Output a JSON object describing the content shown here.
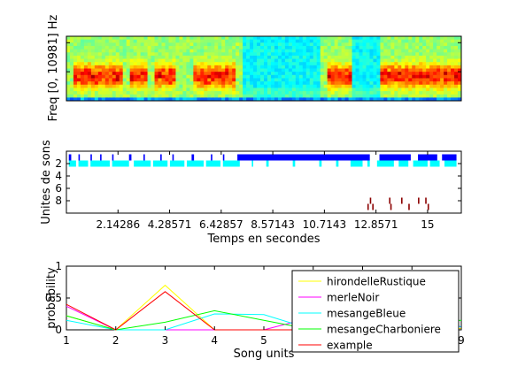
{
  "figure": {
    "panels": [
      {
        "id": "spectrogram",
        "ylabel": "Freq [0, 10981] Hz"
      },
      {
        "id": "units",
        "ylabel": "Unites de sons",
        "xlabel": "Temps en secondes",
        "yticks": [
          "2",
          "4",
          "6",
          "8"
        ],
        "xticks": [
          "2.14286",
          "4.28571",
          "6.42857",
          "8.57143",
          "10.7143",
          "12.8571",
          "15"
        ]
      },
      {
        "id": "probability",
        "ylabel": "probability",
        "xlabel": "Song units",
        "yticks": [
          "0",
          "0.5",
          "1"
        ],
        "xticks": [
          "1",
          "2",
          "3",
          "4",
          "5",
          "6",
          "7",
          "8",
          "9"
        ]
      }
    ]
  },
  "chart_data": [
    {
      "type": "heatmap",
      "title": "",
      "xlabel": "",
      "ylabel": "Freq [0, 10981] Hz",
      "ylim": [
        0,
        10981
      ],
      "xlim": [
        0,
        16.4
      ],
      "colormap": "jet",
      "activity_segments_seconds": [
        [
          0.3,
          2.3
        ],
        [
          2.6,
          3.3
        ],
        [
          3.6,
          4.6
        ],
        [
          5.2,
          7.1
        ],
        [
          10.8,
          11.8
        ],
        [
          13.1,
          16.4
        ]
      ],
      "quiet_segments_seconds": [
        [
          7.3,
          10.6
        ],
        [
          11.9,
          13.0
        ]
      ]
    },
    {
      "type": "scatter",
      "title": "",
      "xlabel": "Temps en secondes",
      "ylabel": "Unites de sons",
      "xlim": [
        0,
        16.4
      ],
      "ylim": [
        10,
        0
      ],
      "x_ticks": [
        2.14286,
        4.28571,
        6.42857,
        8.57143,
        10.7143,
        12.8571,
        15
      ],
      "y_ticks": [
        2,
        4,
        6,
        8
      ],
      "series": [
        {
          "unit": 1,
          "color": "#0000ff",
          "events": [
            [
              0.1,
              0.2
            ],
            [
              0.5,
              0.55
            ],
            [
              1.0,
              1.05
            ],
            [
              1.4,
              1.45
            ],
            [
              1.9,
              1.95
            ],
            [
              2.6,
              2.7
            ],
            [
              3.2,
              3.25
            ],
            [
              3.9,
              3.95
            ],
            [
              4.4,
              4.45
            ],
            [
              5.2,
              5.3
            ],
            [
              6.0,
              6.05
            ],
            [
              6.5,
              6.55
            ],
            [
              7.1,
              12.6
            ],
            [
              13.0,
              14.3
            ],
            [
              14.6,
              15.4
            ],
            [
              15.6,
              16.2
            ]
          ]
        },
        {
          "unit": 2,
          "color": "#00ffff",
          "events": [
            [
              0.1,
              0.4
            ],
            [
              0.5,
              0.9
            ],
            [
              1.0,
              1.8
            ],
            [
              1.9,
              2.6
            ],
            [
              2.8,
              3.5
            ],
            [
              3.6,
              4.2
            ],
            [
              4.3,
              4.9
            ],
            [
              5.0,
              5.7
            ],
            [
              5.8,
              6.4
            ],
            [
              6.5,
              7.2
            ],
            [
              7.7,
              7.75
            ],
            [
              8.3,
              8.4
            ],
            [
              9.4,
              9.5
            ],
            [
              10.5,
              10.6
            ],
            [
              11.2,
              11.3
            ],
            [
              11.8,
              12.3
            ],
            [
              12.5,
              12.6
            ],
            [
              12.9,
              13.6
            ],
            [
              13.8,
              14.2
            ],
            [
              14.4,
              15.0
            ],
            [
              15.1,
              15.5
            ],
            [
              15.7,
              16.2
            ]
          ]
        },
        {
          "unit": 8,
          "color": "#8b0000",
          "events": [
            [
              12.6,
              12.63
            ],
            [
              13.4,
              13.43
            ],
            [
              13.9,
              13.93
            ],
            [
              14.6,
              14.63
            ],
            [
              14.9,
              14.93
            ]
          ]
        },
        {
          "unit": 9,
          "color": "#8b0000",
          "events": [
            [
              12.5,
              12.53
            ],
            [
              12.7,
              12.73
            ],
            [
              13.45,
              13.48
            ],
            [
              14.2,
              14.23
            ],
            [
              15.0,
              15.03
            ]
          ]
        }
      ]
    },
    {
      "type": "line",
      "title": "",
      "xlabel": "Song units",
      "ylabel": "probability",
      "x": [
        1,
        2,
        3,
        4,
        5,
        6,
        7,
        8,
        9
      ],
      "xlim": [
        1,
        9
      ],
      "ylim": [
        0,
        1
      ],
      "legend_position": "bottom-right",
      "series": [
        {
          "name": "hirondelleRustique",
          "color": "#ffff00",
          "values": [
            0.22,
            0.0,
            0.7,
            0.0,
            0.0,
            0.0,
            0.0,
            0.0,
            0.02
          ]
        },
        {
          "name": "merleNoir",
          "color": "#ff00ff",
          "values": [
            0.37,
            0.0,
            0.0,
            0.0,
            0.0,
            0.2,
            0.1,
            0.1,
            0.05
          ]
        },
        {
          "name": "mesangeBleue",
          "color": "#00ffff",
          "values": [
            0.15,
            0.0,
            0.0,
            0.25,
            0.24,
            0.0,
            0.1,
            0.1,
            0.05
          ]
        },
        {
          "name": "mesangeCharboniere",
          "color": "#00ff00",
          "values": [
            0.22,
            0.0,
            0.12,
            0.3,
            0.15,
            0.0,
            0.1,
            0.12,
            0.15
          ]
        },
        {
          "name": "example",
          "color": "#ff0000",
          "values": [
            0.4,
            0.0,
            0.6,
            0.0,
            0.0,
            0.0,
            0.0,
            0.0,
            0.0
          ]
        }
      ]
    }
  ]
}
